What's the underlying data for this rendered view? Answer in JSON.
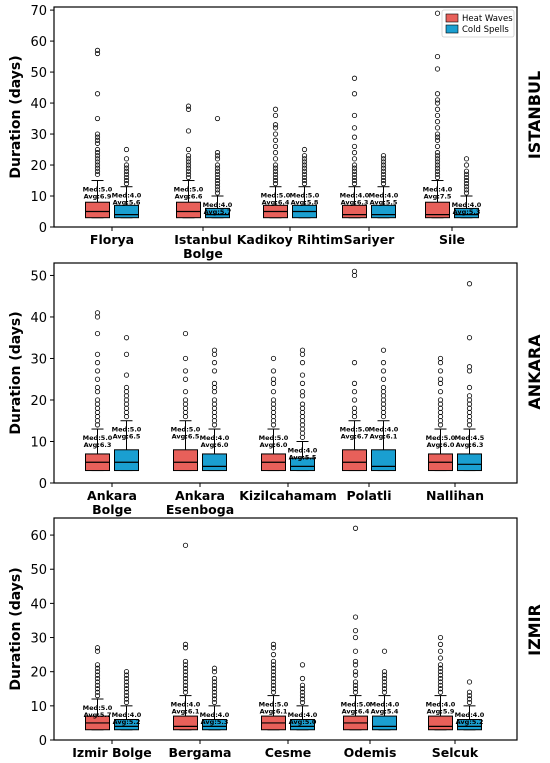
{
  "colors": {
    "heat_waves": "#e8605a",
    "cold_spells": "#1a9fd1",
    "axis": "#000000"
  },
  "legend": {
    "heat_waves_label": "Heat Waves",
    "cold_spells_label": "Cold Spells"
  },
  "chart_data": [
    {
      "type": "box",
      "region": "ISTANBUL",
      "ylabel": "Duration (days)",
      "ylim": [
        0,
        71
      ],
      "yticks": [
        0,
        10,
        20,
        30,
        40,
        50,
        60,
        70
      ],
      "legend": "top-right",
      "categories": [
        "Florya",
        "Istanbul\nBolge",
        "Kadikoy Rihtim",
        "Sariyer",
        "Sile"
      ],
      "series": [
        {
          "name": "Heat Waves",
          "stats": [
            {
              "q1": 3,
              "med": 5.0,
              "q3": 8,
              "whislo": 3,
              "whishi": 15,
              "avg": 6.9,
              "fliers": [
                17,
                18,
                19,
                20,
                21,
                22,
                23,
                24,
                25,
                27,
                28,
                29,
                30,
                35,
                43,
                56,
                57
              ]
            },
            {
              "q1": 3,
              "med": 5.0,
              "q3": 8,
              "whislo": 3,
              "whishi": 15,
              "avg": 6.6,
              "fliers": [
                16,
                17,
                18,
                19,
                20,
                21,
                22,
                23,
                25,
                31,
                38,
                39
              ]
            },
            {
              "q1": 3,
              "med": 5.0,
              "q3": 7,
              "whislo": 3,
              "whishi": 13,
              "avg": 6.4,
              "fliers": [
                14,
                15,
                16,
                17,
                18,
                19,
                20,
                22,
                24,
                26,
                28,
                30,
                32,
                33,
                36,
                38
              ]
            },
            {
              "q1": 3,
              "med": 4.0,
              "q3": 7,
              "whislo": 3,
              "whishi": 13,
              "avg": 6.3,
              "fliers": [
                14,
                15,
                16,
                17,
                18,
                19,
                20,
                22,
                24,
                26,
                29,
                32,
                36,
                43,
                48
              ]
            },
            {
              "q1": 3,
              "med": 4.0,
              "q3": 8,
              "whislo": 3,
              "whishi": 15,
              "avg": 7.5,
              "fliers": [
                16,
                17,
                18,
                19,
                20,
                21,
                22,
                23,
                24,
                26,
                28,
                29,
                30,
                32,
                34,
                36,
                38,
                40,
                41,
                43,
                51,
                55,
                69
              ]
            }
          ]
        },
        {
          "name": "Cold Spells",
          "stats": [
            {
              "q1": 3,
              "med": 4.0,
              "q3": 7,
              "whislo": 3,
              "whishi": 13,
              "avg": 5.6,
              "fliers": [
                14,
                15,
                16,
                17,
                18,
                19,
                20,
                22,
                25
              ]
            },
            {
              "q1": 3,
              "med": 4.0,
              "q3": 6,
              "whislo": 3,
              "whishi": 10,
              "avg": 5.7,
              "fliers": [
                11,
                12,
                13,
                14,
                15,
                16,
                17,
                18,
                19,
                20,
                22,
                23,
                24,
                35
              ]
            },
            {
              "q1": 3,
              "med": 5.0,
              "q3": 7,
              "whislo": 3,
              "whishi": 13,
              "avg": 5.8,
              "fliers": [
                14,
                15,
                16,
                17,
                18,
                19,
                20,
                21,
                22,
                23,
                25
              ]
            },
            {
              "q1": 3,
              "med": 4.0,
              "q3": 7,
              "whislo": 3,
              "whishi": 13,
              "avg": 5.5,
              "fliers": [
                14,
                15,
                16,
                17,
                18,
                19,
                20,
                21,
                22,
                23
              ]
            },
            {
              "q1": 3,
              "med": 4.0,
              "q3": 6,
              "whislo": 3,
              "whishi": 10,
              "avg": 5.3,
              "fliers": [
                11,
                12,
                13,
                14,
                15,
                16,
                17,
                18,
                20,
                22
              ]
            }
          ]
        }
      ]
    },
    {
      "type": "box",
      "region": "ANKARA",
      "ylabel": "Duration (days)",
      "ylim": [
        0,
        53
      ],
      "yticks": [
        0,
        10,
        20,
        30,
        40,
        50
      ],
      "categories": [
        "Ankara\nBolge",
        "Ankara\nEsenboga",
        "Kizilcahamam",
        "Polatli",
        "Nallihan"
      ],
      "series": [
        {
          "name": "Heat Waves",
          "stats": [
            {
              "q1": 3,
              "med": 5.0,
              "q3": 7,
              "whislo": 3,
              "whishi": 13,
              "avg": 6.3,
              "fliers": [
                14,
                15,
                16,
                17,
                18,
                19,
                20,
                22,
                23,
                25,
                27,
                29,
                31,
                36,
                40,
                41
              ]
            },
            {
              "q1": 3,
              "med": 5.0,
              "q3": 8,
              "whislo": 3,
              "whishi": 15,
              "avg": 6.5,
              "fliers": [
                16,
                17,
                18,
                19,
                20,
                22,
                25,
                27,
                30,
                36
              ]
            },
            {
              "q1": 3,
              "med": 5.0,
              "q3": 7,
              "whislo": 3,
              "whishi": 13,
              "avg": 6.0,
              "fliers": [
                14,
                15,
                16,
                17,
                18,
                19,
                20,
                22,
                24,
                25,
                27,
                30
              ]
            },
            {
              "q1": 3,
              "med": 5.0,
              "q3": 8,
              "whislo": 3,
              "whishi": 15,
              "avg": 6.7,
              "fliers": [
                16,
                17,
                18,
                20,
                22,
                24,
                29,
                50,
                51
              ]
            },
            {
              "q1": 3,
              "med": 5.0,
              "q3": 7,
              "whislo": 3,
              "whishi": 13,
              "avg": 6.0,
              "fliers": [
                14,
                15,
                16,
                17,
                18,
                19,
                20,
                22,
                24,
                25,
                27,
                29,
                30
              ]
            }
          ]
        },
        {
          "name": "Cold Spells",
          "stats": [
            {
              "q1": 3,
              "med": 5.0,
              "q3": 8,
              "whislo": 3,
              "whishi": 15,
              "avg": 6.5,
              "fliers": [
                16,
                17,
                18,
                19,
                20,
                21,
                22,
                23,
                26,
                31,
                35
              ]
            },
            {
              "q1": 3,
              "med": 4.0,
              "q3": 7,
              "whislo": 3,
              "whishi": 13,
              "avg": 6.0,
              "fliers": [
                14,
                15,
                16,
                17,
                18,
                19,
                20,
                22,
                23,
                24,
                27,
                29,
                31,
                32
              ]
            },
            {
              "q1": 3,
              "med": 4.0,
              "q3": 6,
              "whislo": 3,
              "whishi": 10,
              "avg": 5.5,
              "fliers": [
                11,
                12,
                13,
                14,
                15,
                16,
                17,
                18,
                19,
                21,
                22,
                24,
                26,
                29,
                31,
                32
              ]
            },
            {
              "q1": 3,
              "med": 4.0,
              "q3": 8,
              "whislo": 3,
              "whishi": 15,
              "avg": 6.1,
              "fliers": [
                16,
                17,
                18,
                19,
                20,
                21,
                22,
                23,
                25,
                27,
                29,
                32
              ]
            },
            {
              "q1": 3,
              "med": 4.5,
              "q3": 7,
              "whislo": 3,
              "whishi": 13,
              "avg": 6.3,
              "fliers": [
                14,
                15,
                16,
                17,
                18,
                19,
                20,
                21,
                23,
                27,
                28,
                35,
                48
              ]
            }
          ]
        }
      ]
    },
    {
      "type": "box",
      "region": "IZMIR",
      "ylabel": "Duration (days)",
      "ylim": [
        0,
        65
      ],
      "yticks": [
        0,
        10,
        20,
        30,
        40,
        50,
        60
      ],
      "categories": [
        "Izmir Bolge",
        "Bergama",
        "Cesme",
        "Odemis",
        "Selcuk"
      ],
      "series": [
        {
          "name": "Heat Waves",
          "stats": [
            {
              "q1": 3,
              "med": 5.0,
              "q3": 7,
              "whislo": 3,
              "whishi": 12,
              "avg": 5.7,
              "fliers": [
                13,
                14,
                15,
                16,
                17,
                18,
                19,
                20,
                21,
                22,
                26,
                27
              ]
            },
            {
              "q1": 3,
              "med": 4.0,
              "q3": 7,
              "whislo": 3,
              "whishi": 13,
              "avg": 6.1,
              "fliers": [
                14,
                15,
                16,
                17,
                18,
                19,
                20,
                21,
                22,
                23,
                27,
                28,
                57
              ]
            },
            {
              "q1": 3,
              "med": 5.0,
              "q3": 7,
              "whislo": 3,
              "whishi": 13,
              "avg": 6.1,
              "fliers": [
                14,
                15,
                16,
                17,
                18,
                19,
                20,
                21,
                22,
                23,
                25,
                27,
                28
              ]
            },
            {
              "q1": 3,
              "med": 5.0,
              "q3": 7,
              "whislo": 3,
              "whishi": 13,
              "avg": 6.4,
              "fliers": [
                14,
                15,
                16,
                17,
                19,
                20,
                22,
                23,
                26,
                30,
                32,
                36,
                62
              ]
            },
            {
              "q1": 3,
              "med": 4.0,
              "q3": 7,
              "whislo": 3,
              "whishi": 13,
              "avg": 5.9,
              "fliers": [
                14,
                15,
                16,
                17,
                18,
                19,
                20,
                21,
                22,
                24,
                26,
                28,
                30
              ]
            }
          ]
        },
        {
          "name": "Cold Spells",
          "stats": [
            {
              "q1": 3,
              "med": 4.0,
              "q3": 6,
              "whislo": 3,
              "whishi": 10,
              "avg": 5.2,
              "fliers": [
                11,
                12,
                13,
                14,
                15,
                16,
                17,
                18,
                19,
                20
              ]
            },
            {
              "q1": 3,
              "med": 4.0,
              "q3": 6,
              "whislo": 3,
              "whishi": 10,
              "avg": 5.3,
              "fliers": [
                11,
                12,
                13,
                14,
                15,
                16,
                17,
                18,
                20,
                21
              ]
            },
            {
              "q1": 3,
              "med": 4.0,
              "q3": 6,
              "whislo": 3,
              "whishi": 10,
              "avg": 5.0,
              "fliers": [
                11,
                12,
                13,
                14,
                15,
                16,
                18,
                22
              ]
            },
            {
              "q1": 3,
              "med": 4.0,
              "q3": 7,
              "whislo": 3,
              "whishi": 13,
              "avg": 5.4,
              "fliers": [
                14,
                15,
                16,
                17,
                18,
                19,
                20,
                26
              ]
            },
            {
              "q1": 3,
              "med": 4.0,
              "q3": 6,
              "whislo": 3,
              "whishi": 10,
              "avg": 5.2,
              "fliers": [
                11,
                12,
                13,
                14,
                17
              ]
            }
          ]
        }
      ]
    }
  ]
}
